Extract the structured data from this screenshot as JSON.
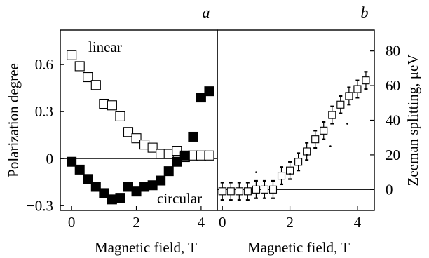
{
  "chart_data": [
    {
      "panel": "a",
      "type": "scatter",
      "xlabel": "Magnetic field, T",
      "ylabel": "Polarization degree",
      "xlim": [
        -0.35,
        4.5
      ],
      "ylim": [
        -0.33,
        0.82
      ],
      "xticks": [
        0,
        2,
        4
      ],
      "xtick_labels": [
        "0",
        "2",
        "4"
      ],
      "yticks": [
        -0.3,
        0,
        0.3,
        0.6
      ],
      "ytick_labels": [
        "−0.3",
        "0",
        "0.3",
        "0.6"
      ],
      "zero_line": true,
      "series": [
        {
          "name": "linear",
          "marker": "open-square",
          "x": [
            0.0,
            0.25,
            0.5,
            0.75,
            1.0,
            1.25,
            1.5,
            1.75,
            2.0,
            2.25,
            2.5,
            2.75,
            3.0,
            3.25,
            3.5,
            3.75,
            4.0,
            4.25
          ],
          "y": [
            0.66,
            0.59,
            0.52,
            0.47,
            0.35,
            0.34,
            0.27,
            0.17,
            0.13,
            0.09,
            0.07,
            0.03,
            0.03,
            0.05,
            0.01,
            0.02,
            0.02,
            0.02
          ]
        },
        {
          "name": "circular",
          "marker": "filled-square",
          "x": [
            0.0,
            0.25,
            0.5,
            0.75,
            1.0,
            1.25,
            1.5,
            1.75,
            2.0,
            2.25,
            2.5,
            2.75,
            3.0,
            3.25,
            3.5,
            3.75,
            4.0,
            4.25
          ],
          "y": [
            -0.02,
            -0.07,
            -0.13,
            -0.18,
            -0.22,
            -0.26,
            -0.25,
            -0.18,
            -0.21,
            -0.18,
            -0.17,
            -0.14,
            -0.08,
            -0.02,
            0.02,
            0.14,
            0.39,
            0.43
          ]
        }
      ],
      "labels": {
        "panel": "a",
        "linear": "linear",
        "circular": "circular"
      }
    },
    {
      "panel": "b",
      "type": "scatter",
      "xlabel": "Magnetic field, T",
      "ylabel": "Zeeman splitting, μeV",
      "xlim": [
        -0.15,
        4.5
      ],
      "ylim": [
        -12,
        92
      ],
      "xticks": [
        0,
        2,
        4
      ],
      "xtick_labels": [
        "0",
        "2",
        "4"
      ],
      "yticks": [
        0,
        20,
        40,
        60,
        80
      ],
      "ytick_labels": [
        "0",
        "20",
        "40",
        "60",
        "80"
      ],
      "zero_line": true,
      "series": [
        {
          "marker": "open-square-errorbar",
          "x": [
            0.0,
            0.25,
            0.5,
            0.75,
            1.0,
            1.25,
            1.5,
            1.75,
            2.0,
            2.25,
            2.5,
            2.75,
            3.0,
            3.25,
            3.5,
            3.75,
            4.0,
            4.25
          ],
          "y": [
            -1,
            -1,
            -1,
            -1,
            0,
            0,
            0,
            8,
            11,
            16,
            22,
            29,
            34,
            43,
            49,
            54,
            58,
            63
          ],
          "yerr": [
            5,
            5,
            5,
            5,
            5,
            5,
            5,
            5,
            5,
            5,
            5,
            5,
            5,
            5,
            5,
            5,
            5,
            5
          ]
        },
        {
          "marker": "dot",
          "x": [
            1.0,
            2.0,
            2.5,
            3.2,
            3.7
          ],
          "y": [
            10,
            9,
            20,
            25,
            38
          ]
        }
      ],
      "labels": {
        "panel": "b"
      }
    }
  ]
}
